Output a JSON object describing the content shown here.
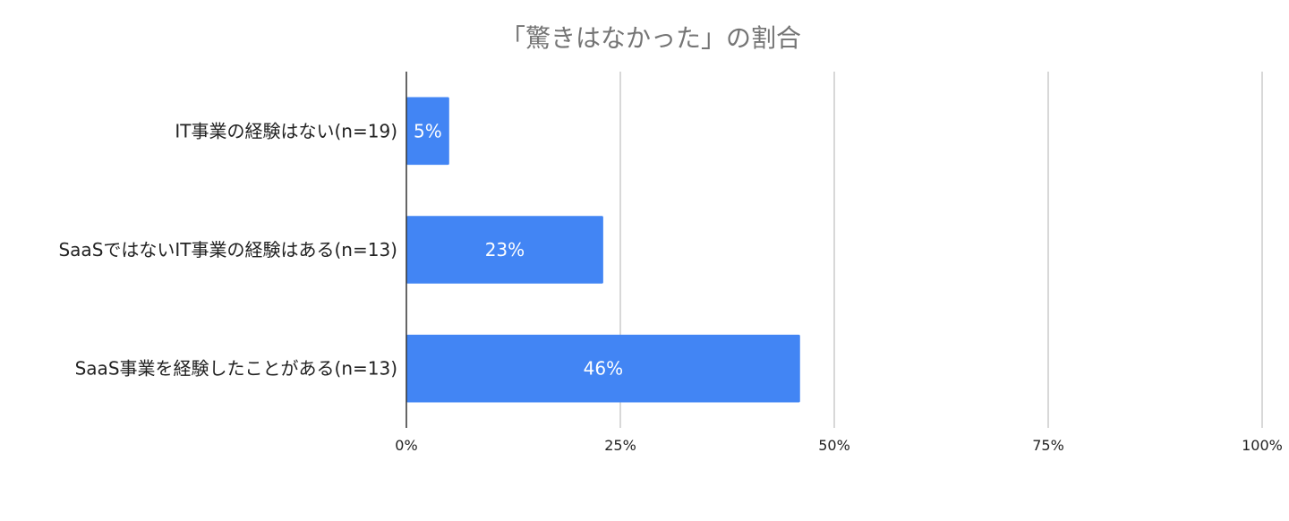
{
  "chart_data": {
    "type": "bar",
    "orientation": "horizontal",
    "title": "「驚きはなかった」の割合",
    "xlabel": "",
    "ylabel": "",
    "categories": [
      "IT事業の経験はない(n=19)",
      "SaaSではないIT事業の経験はある(n=13)",
      "SaaS事業を経験したことがある(n=13)"
    ],
    "values": [
      5,
      23,
      46
    ],
    "data_labels": [
      "5%",
      "23%",
      "46%"
    ],
    "xlim": [
      0,
      100
    ],
    "x_ticks": [
      0,
      25,
      50,
      75,
      100
    ],
    "x_tick_labels": [
      "0%",
      "25%",
      "50%",
      "75%",
      "100%"
    ],
    "grid": true,
    "legend": "none",
    "bar_color": "#4285f4"
  }
}
